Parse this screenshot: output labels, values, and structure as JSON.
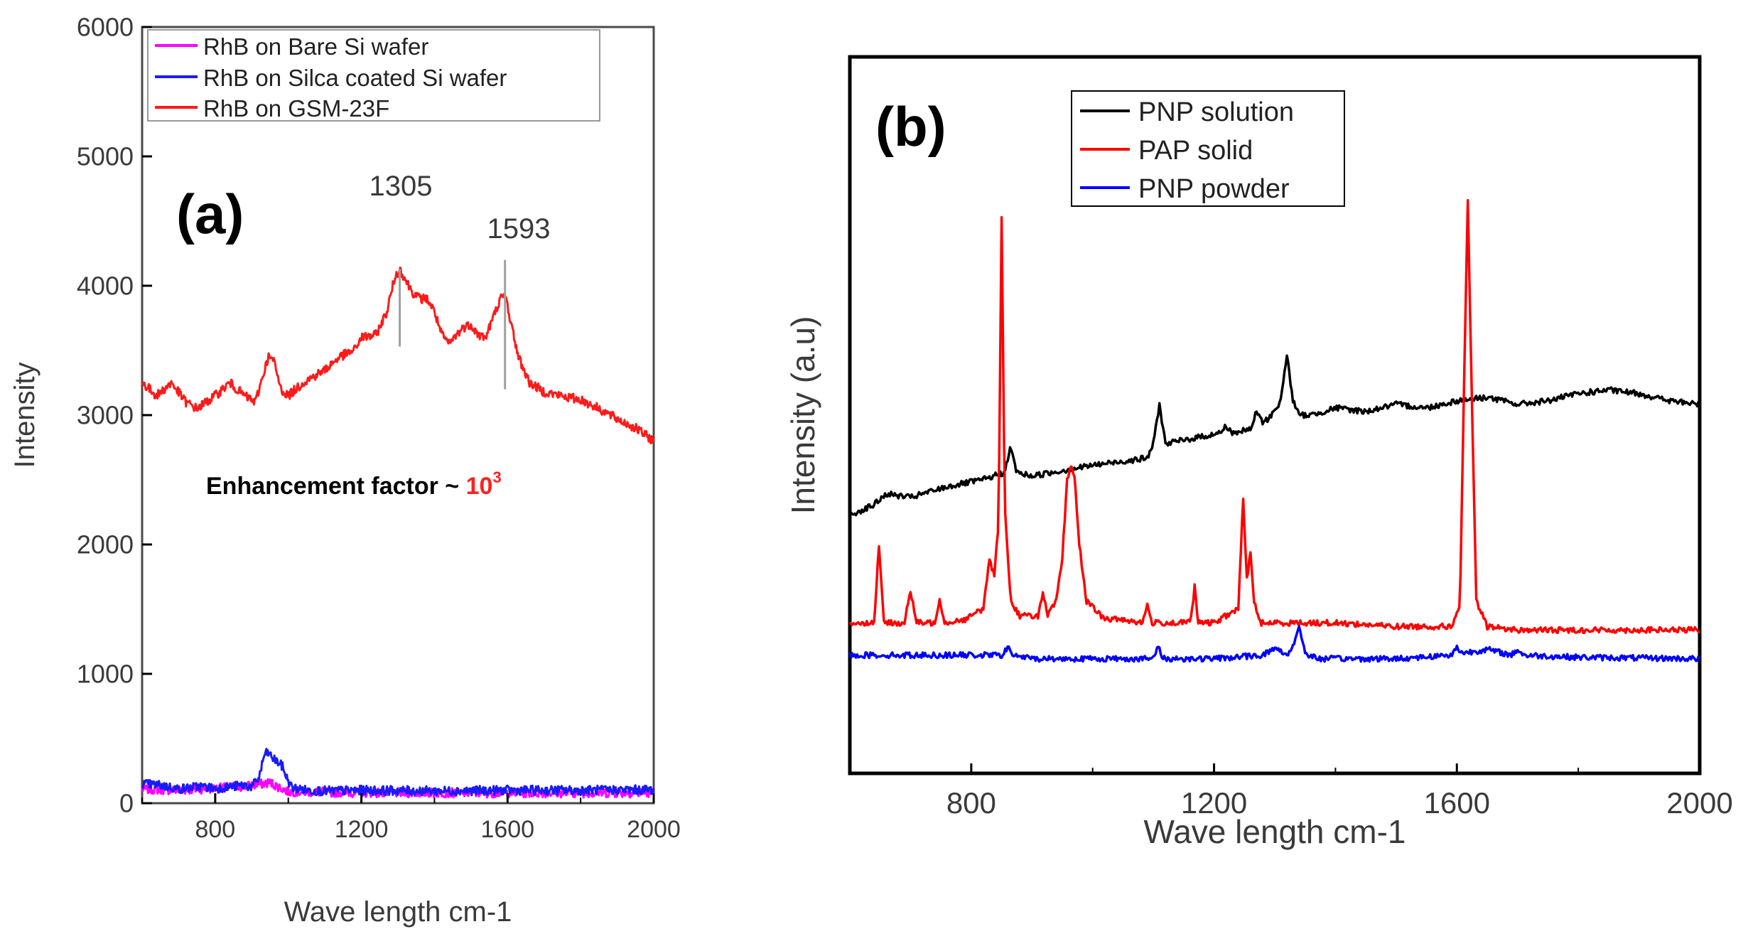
{
  "chart_data": [
    {
      "type": "line",
      "panel_label": "(a)",
      "xlabel": "Wave length cm-1",
      "ylabel": "Intensity",
      "xlim": [
        600,
        2000
      ],
      "ylim": [
        0,
        6000
      ],
      "xticks": [
        "800",
        "1200",
        "1600",
        "2000"
      ],
      "yticks": [
        "0",
        "1000",
        "2000",
        "3000",
        "4000",
        "5000",
        "6000"
      ],
      "annotations": [
        {
          "text": "1305",
          "x": 1305,
          "y_top": 4130,
          "y_bottom": 3530
        },
        {
          "text": "1593",
          "x": 1593,
          "y_top": 4200,
          "y_bottom": 3200
        }
      ],
      "note_prefix": "Enhancement factor ~ ",
      "note_base": "10",
      "note_exp": "3",
      "legend": [
        "RhB on Bare Si wafer",
        "RhB on Silca coated Si wafer",
        "RhB on GSM-23F"
      ],
      "series": [
        {
          "name": "RhB on Bare Si wafer",
          "color": "#ff00ff",
          "x": [
            600,
            700,
            800,
            880,
            930,
            950,
            970,
            1000,
            1100,
            1300,
            1600,
            2000
          ],
          "y": [
            110,
            100,
            115,
            130,
            150,
            160,
            130,
            90,
            85,
            80,
            80,
            80
          ]
        },
        {
          "name": "RhB on Silca coated Si wafer",
          "color": "#1a1aff",
          "x": [
            600,
            650,
            700,
            760,
            800,
            850,
            880,
            900,
            920,
            935,
            945,
            960,
            975,
            985,
            995,
            1010,
            1050,
            1100,
            1200,
            1400,
            1600,
            1800,
            2000
          ],
          "y": [
            150,
            140,
            110,
            130,
            115,
            130,
            140,
            125,
            200,
            380,
            390,
            340,
            310,
            280,
            200,
            120,
            100,
            95,
            100,
            95,
            100,
            100,
            105
          ]
        },
        {
          "name": "RhB on GSM-23F",
          "color": "#ff1a1a",
          "x": [
            600,
            640,
            680,
            720,
            750,
            800,
            840,
            880,
            910,
            930,
            945,
            960,
            980,
            1000,
            1040,
            1100,
            1140,
            1180,
            1200,
            1240,
            1270,
            1290,
            1305,
            1320,
            1340,
            1360,
            1380,
            1400,
            1420,
            1440,
            1460,
            1480,
            1500,
            1520,
            1540,
            1560,
            1580,
            1595,
            1610,
            1630,
            1660,
            1700,
            1760,
            1800,
            1850,
            1900,
            1950,
            2000
          ],
          "y": [
            3250,
            3150,
            3250,
            3100,
            3050,
            3150,
            3250,
            3150,
            3100,
            3300,
            3450,
            3420,
            3200,
            3150,
            3250,
            3350,
            3450,
            3500,
            3600,
            3620,
            3800,
            4050,
            4130,
            4050,
            3950,
            3900,
            3900,
            3800,
            3620,
            3550,
            3620,
            3680,
            3700,
            3620,
            3600,
            3750,
            3900,
            3920,
            3700,
            3450,
            3250,
            3180,
            3140,
            3120,
            3050,
            2970,
            2900,
            2800
          ]
        }
      ]
    },
    {
      "type": "line",
      "panel_label": "(b)",
      "xlabel": "Wave length cm-1",
      "ylabel": "Intensity (a.u)",
      "xlim": [
        600,
        2000
      ],
      "ylim": [
        0,
        100
      ],
      "xticks": [
        "800",
        "1200",
        "1600",
        "2000"
      ],
      "legend": [
        "PNP solution",
        "PAP solid",
        "PNP powder"
      ],
      "series": [
        {
          "name": "PNP solution",
          "color": "#000000",
          "x": [
            600,
            640,
            660,
            700,
            760,
            820,
            855,
            865,
            875,
            900,
            1000,
            1090,
            1100,
            1110,
            1120,
            1150,
            1210,
            1220,
            1230,
            1260,
            1270,
            1280,
            1290,
            1310,
            1320,
            1330,
            1340,
            1360,
            1400,
            1450,
            1500,
            1550,
            1600,
            1650,
            1700,
            1750,
            1800,
            1850,
            1900,
            1950,
            2000
          ],
          "y": [
            36.0,
            37.5,
            39.0,
            38.5,
            40.0,
            41.0,
            42.0,
            45.5,
            42.0,
            41.5,
            43.0,
            44.0,
            46.0,
            51.5,
            46.0,
            46.5,
            47.5,
            48.5,
            47.5,
            48.0,
            50.5,
            49.0,
            49.5,
            52.0,
            58.5,
            52.0,
            50.0,
            50.0,
            51.0,
            50.5,
            51.5,
            51.0,
            52.0,
            52.5,
            51.5,
            52.0,
            53.0,
            53.5,
            53.0,
            52.0,
            51.5
          ]
        },
        {
          "name": "PAP solid",
          "color": "#ff0000",
          "x": [
            600,
            640,
            648,
            656,
            690,
            700,
            710,
            740,
            748,
            756,
            790,
            820,
            830,
            838,
            845,
            850,
            855,
            865,
            880,
            910,
            918,
            926,
            940,
            950,
            958,
            964,
            970,
            978,
            990,
            1020,
            1050,
            1082,
            1090,
            1098,
            1150,
            1162,
            1168,
            1174,
            1200,
            1240,
            1248,
            1254,
            1260,
            1266,
            1275,
            1300,
            1400,
            1500,
            1590,
            1605,
            1612,
            1618,
            1624,
            1632,
            1650,
            1700,
            1800,
            1900,
            2000
          ],
          "y": [
            21.0,
            21.0,
            32.0,
            21.0,
            21.0,
            25.5,
            21.0,
            21.0,
            24.5,
            21.0,
            21.5,
            23.0,
            30.0,
            27.5,
            35.0,
            78.0,
            38.0,
            24.0,
            22.0,
            22.0,
            25.0,
            22.0,
            24.0,
            30.0,
            41.0,
            43.0,
            41.5,
            32.0,
            24.0,
            21.5,
            21.5,
            21.0,
            23.5,
            21.0,
            21.0,
            21.5,
            26.0,
            21.0,
            21.0,
            23.0,
            38.5,
            27.0,
            31.0,
            24.0,
            21.0,
            21.0,
            21.0,
            20.5,
            20.5,
            23.0,
            55.0,
            80.0,
            55.0,
            24.0,
            20.5,
            20.0,
            20.0,
            20.0,
            20.0
          ]
        },
        {
          "name": "PNP powder",
          "color": "#0000ff",
          "x": [
            600,
            800,
            850,
            860,
            870,
            900,
            1100,
            1108,
            1116,
            1200,
            1280,
            1300,
            1320,
            1330,
            1340,
            1350,
            1370,
            1500,
            1590,
            1600,
            1610,
            1650,
            1690,
            1700,
            1710,
            1800,
            2000
          ],
          "y": [
            16.5,
            16.5,
            16.5,
            17.5,
            16.5,
            16.0,
            16.0,
            17.8,
            16.0,
            16.0,
            16.5,
            17.5,
            16.5,
            17.8,
            20.5,
            16.8,
            16.0,
            16.0,
            16.5,
            17.5,
            16.8,
            17.3,
            16.5,
            17.3,
            16.5,
            16.2,
            16.0
          ]
        }
      ]
    }
  ]
}
